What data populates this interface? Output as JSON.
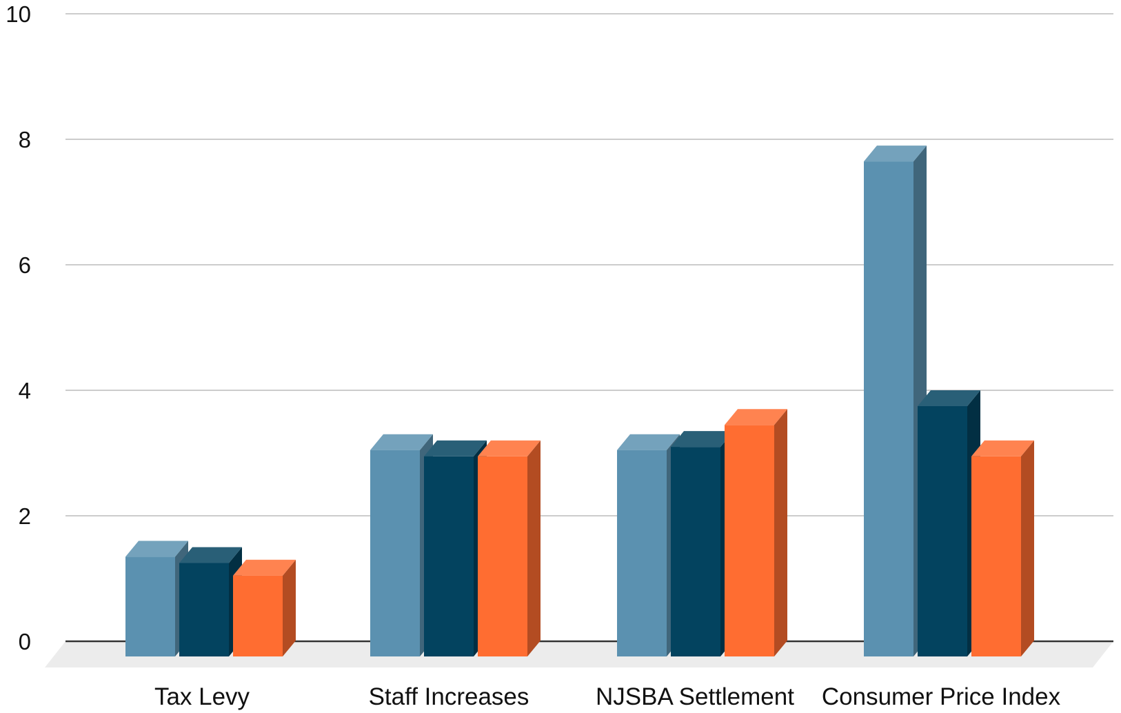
{
  "chart_data": {
    "type": "bar",
    "style": "3d",
    "title": "",
    "xlabel": "",
    "ylabel": "",
    "ylim": [
      0,
      10
    ],
    "yticks": [
      0,
      2,
      4,
      6,
      8,
      10
    ],
    "grid": true,
    "legend": "none",
    "categories": [
      "Tax Levy",
      "Staff Increases",
      "NJSBA Settlement",
      "Consumer Price Index"
    ],
    "series": [
      {
        "values": [
          1.6,
          3.3,
          3.3,
          7.9
        ],
        "color": "#5b91b0"
      },
      {
        "values": [
          1.5,
          3.2,
          3.35,
          4.0
        ],
        "color": "#03435f"
      },
      {
        "values": [
          1.3,
          3.2,
          3.7,
          3.2
        ],
        "color": "#ff6d31"
      }
    ]
  }
}
